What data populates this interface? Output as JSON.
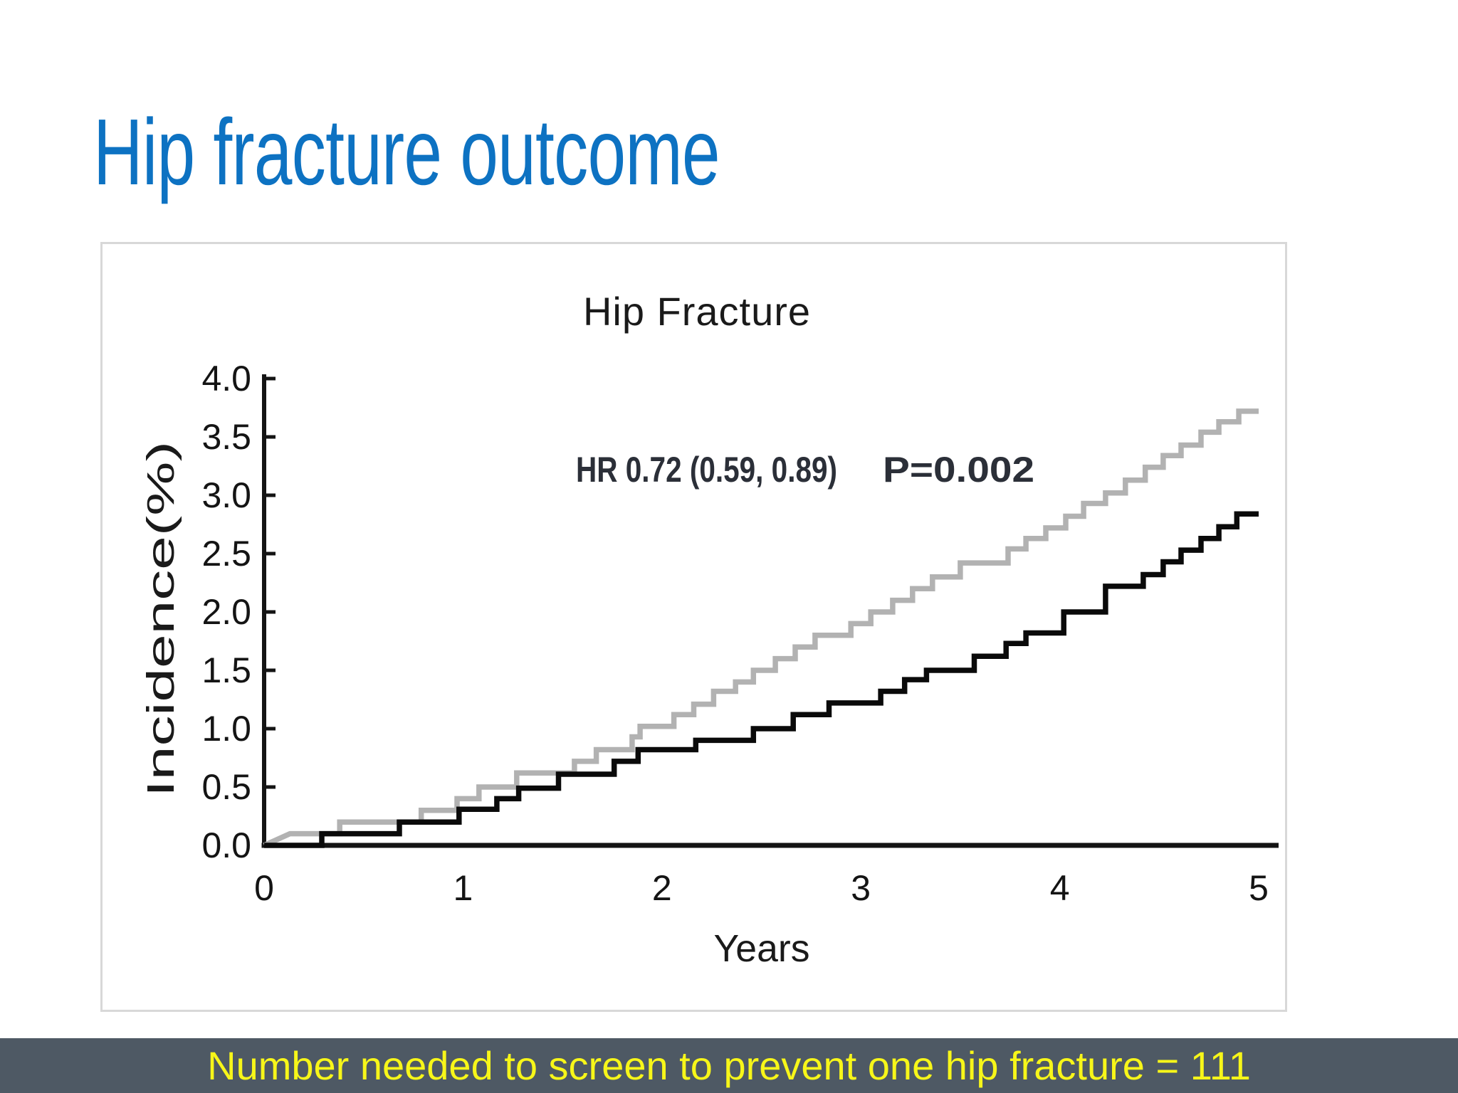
{
  "slide": {
    "title": "Hip fracture outcome",
    "banner_text": "Number needed to screen to prevent one hip fracture = 111"
  },
  "colors": {
    "title_text": "#0d72c2",
    "banner_background": "#4e5964",
    "banner_text": "#f7f619",
    "panel_border": "#d8d8d8",
    "axis_and_labels": "#141414",
    "annotation_text": "#2b2f38",
    "series_gray": "#b2b2b2",
    "series_black": "#0a0a0a"
  },
  "chart_data": {
    "type": "line",
    "subtype": "cumulative-incidence-step-curves",
    "title": "Hip Fracture",
    "xlabel": "Years",
    "ylabel": "Incidence(%)",
    "xlim": [
      0,
      5
    ],
    "ylim": [
      0.0,
      4.0
    ],
    "xticks": [
      "0",
      "1",
      "2",
      "3",
      "4",
      "5"
    ],
    "yticks": [
      "0.0",
      "0.5",
      "1.0",
      "1.5",
      "2.0",
      "2.5",
      "3.0",
      "3.5",
      "4.0"
    ],
    "grid": false,
    "legend_position": "none",
    "annotation": {
      "hazard_ratio": "HR 0.72 (0.59, 0.89)",
      "p_value": "P=0.002"
    },
    "interpolation": "steps-post",
    "series": [
      {
        "name": "upper gray curve",
        "color": "#b2b2b2",
        "line_width": 7.5,
        "first_segment": "line",
        "points": [
          [
            0,
            0
          ],
          [
            0.13,
            0.1
          ],
          [
            0.38,
            0.2
          ],
          [
            0.79,
            0.3
          ],
          [
            0.97,
            0.4
          ],
          [
            1.08,
            0.5
          ],
          [
            1.27,
            0.62
          ],
          [
            1.56,
            0.72
          ],
          [
            1.67,
            0.82
          ],
          [
            1.85,
            0.93
          ],
          [
            1.89,
            1.02
          ],
          [
            2.06,
            1.12
          ],
          [
            2.16,
            1.21
          ],
          [
            2.26,
            1.32
          ],
          [
            2.37,
            1.4
          ],
          [
            2.46,
            1.5
          ],
          [
            2.57,
            1.6
          ],
          [
            2.67,
            1.7
          ],
          [
            2.77,
            1.8
          ],
          [
            2.95,
            1.9
          ],
          [
            3.05,
            2.0
          ],
          [
            3.16,
            2.1
          ],
          [
            3.26,
            2.2
          ],
          [
            3.36,
            2.3
          ],
          [
            3.5,
            2.42
          ],
          [
            3.74,
            2.54
          ],
          [
            3.83,
            2.63
          ],
          [
            3.93,
            2.72
          ],
          [
            4.03,
            2.82
          ],
          [
            4.12,
            2.93
          ],
          [
            4.23,
            3.02
          ],
          [
            4.33,
            3.13
          ],
          [
            4.43,
            3.24
          ],
          [
            4.52,
            3.34
          ],
          [
            4.61,
            3.43
          ],
          [
            4.71,
            3.54
          ],
          [
            4.8,
            3.63
          ],
          [
            4.9,
            3.72
          ]
        ]
      },
      {
        "name": "lower black curve",
        "color": "#0a0a0a",
        "line_width": 7.5,
        "first_segment": "step",
        "points": [
          [
            0,
            0
          ],
          [
            0.29,
            0.1
          ],
          [
            0.68,
            0.2
          ],
          [
            0.98,
            0.31
          ],
          [
            1.17,
            0.4
          ],
          [
            1.28,
            0.49
          ],
          [
            1.48,
            0.61
          ],
          [
            1.76,
            0.72
          ],
          [
            1.88,
            0.82
          ],
          [
            2.17,
            0.9
          ],
          [
            2.46,
            1.0
          ],
          [
            2.66,
            1.12
          ],
          [
            2.84,
            1.22
          ],
          [
            3.1,
            1.32
          ],
          [
            3.22,
            1.42
          ],
          [
            3.33,
            1.5
          ],
          [
            3.57,
            1.62
          ],
          [
            3.73,
            1.73
          ],
          [
            3.83,
            1.82
          ],
          [
            4.02,
            2.0
          ],
          [
            4.23,
            2.22
          ],
          [
            4.42,
            2.32
          ],
          [
            4.52,
            2.43
          ],
          [
            4.61,
            2.53
          ],
          [
            4.71,
            2.63
          ],
          [
            4.8,
            2.73
          ],
          [
            4.89,
            2.84
          ]
        ]
      }
    ]
  }
}
